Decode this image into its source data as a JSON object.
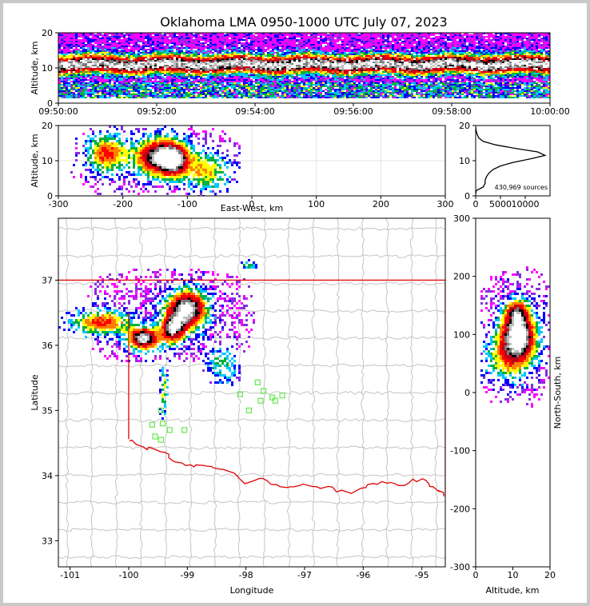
{
  "chart_data": [
    {
      "panel": "time-height",
      "type": "heatmap",
      "title": "Oklahoma LMA 0950-1000 UTC July 07, 2023",
      "ylabel": "Altitude, km",
      "xlim": [
        "09:50:00",
        "10:00:00"
      ],
      "ylim": [
        0,
        20
      ],
      "x_ticks": [
        "09:50:00",
        "09:52:00",
        "09:54:00",
        "09:56:00",
        "09:58:00",
        "10:00:00"
      ],
      "y_ticks": [
        0,
        10,
        20
      ],
      "core_altitude_km": 11
    },
    {
      "panel": "east-west-height",
      "type": "heatmap",
      "xlabel": "East-West, km",
      "ylabel": "Altitude, km",
      "xlim": [
        -300,
        300
      ],
      "ylim": [
        0,
        20
      ],
      "x_ticks": [
        -300,
        -200,
        -100,
        0,
        100,
        200,
        300
      ],
      "y_ticks": [
        0,
        10,
        20
      ],
      "grid": true
    },
    {
      "panel": "altitude-histogram",
      "type": "line",
      "xlim": [
        0,
        15000
      ],
      "ylim": [
        0,
        20
      ],
      "x_ticks": [
        0,
        5000,
        10000
      ],
      "y_ticks": [
        0,
        10,
        20
      ],
      "annotation": "430,969 sources",
      "profile": {
        "altitude_km": [
          0.5,
          1.5,
          2.5,
          3.5,
          4.5,
          5.5,
          6.5,
          7.5,
          8.5,
          9.5,
          10.5,
          11.5,
          12.5,
          13.5,
          14.5,
          15.5,
          16.5,
          17.5,
          18.5,
          19.5
        ],
        "count": [
          0,
          100,
          1500,
          1900,
          1900,
          2200,
          2700,
          3500,
          5000,
          7500,
          11000,
          14000,
          12500,
          8000,
          4000,
          1500,
          600,
          300,
          100,
          0
        ]
      }
    },
    {
      "panel": "plan-view",
      "type": "heatmap",
      "xlabel": "Longitude",
      "ylabel": "Latitude",
      "xlim": [
        -101.2,
        -94.6
      ],
      "ylim": [
        32.6,
        37.95
      ],
      "x_ticks": [
        -101,
        -100,
        -99,
        -98,
        -97,
        -96,
        -95
      ],
      "y_ticks": [
        33,
        34,
        35,
        36,
        37
      ],
      "stations": [
        [
          -97.8,
          35.43
        ],
        [
          -98.1,
          35.25
        ],
        [
          -97.95,
          35.0
        ],
        [
          -97.75,
          35.15
        ],
        [
          -97.55,
          35.2
        ],
        [
          -97.5,
          35.15
        ],
        [
          -97.38,
          35.23
        ],
        [
          -97.7,
          35.3
        ],
        [
          -99.45,
          35.0
        ],
        [
          -99.6,
          34.78
        ],
        [
          -99.42,
          34.8
        ],
        [
          -99.3,
          34.7
        ],
        [
          -99.05,
          34.7
        ],
        [
          -99.55,
          34.6
        ],
        [
          -99.45,
          34.55
        ]
      ]
    },
    {
      "panel": "north-south-altitude",
      "type": "heatmap",
      "xlabel": "Altitude, km",
      "ylabel": "North-South, km",
      "xlim": [
        0,
        20
      ],
      "ylim": [
        -300,
        300
      ],
      "x_ticks": [
        0,
        10,
        20
      ],
      "y_ticks": [
        -300,
        -200,
        -100,
        0,
        100,
        200,
        300
      ]
    }
  ]
}
